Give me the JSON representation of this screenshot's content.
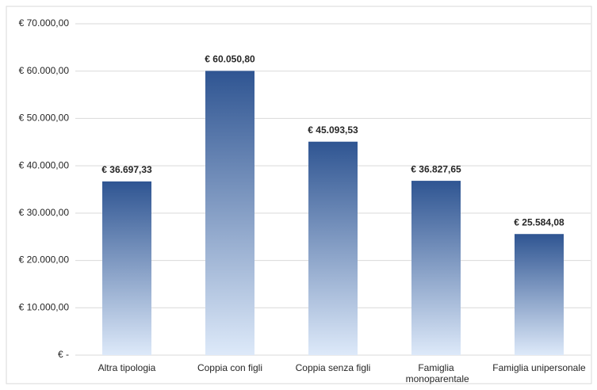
{
  "chart_data": {
    "type": "bar",
    "categories": [
      "Altra tipologia",
      "Coppia con figli",
      "Coppia senza figli",
      "Famiglia monoparentale",
      "Famiglia unipersonale"
    ],
    "values": [
      36697.33,
      60050.8,
      45093.53,
      36827.65,
      25584.08
    ],
    "value_labels": [
      "€ 36.697,33",
      "€ 60.050,80",
      "€ 45.093,53",
      "€ 36.827,65",
      "€ 25.584,08"
    ],
    "color": "#2f5592",
    "ylim": [
      0,
      70000
    ],
    "yticks": [
      {
        "value": 0,
        "label": "€ -"
      },
      {
        "value": 10000,
        "label": "€ 10.000,00"
      },
      {
        "value": 20000,
        "label": "€ 20.000,00"
      },
      {
        "value": 30000,
        "label": "€ 30.000,00"
      },
      {
        "value": 40000,
        "label": "€ 40.000,00"
      },
      {
        "value": 50000,
        "label": "€ 50.000,00"
      },
      {
        "value": 60000,
        "label": "€ 60.000,00"
      },
      {
        "value": 70000,
        "label": "€ 70.000,00"
      }
    ],
    "grid": true
  }
}
